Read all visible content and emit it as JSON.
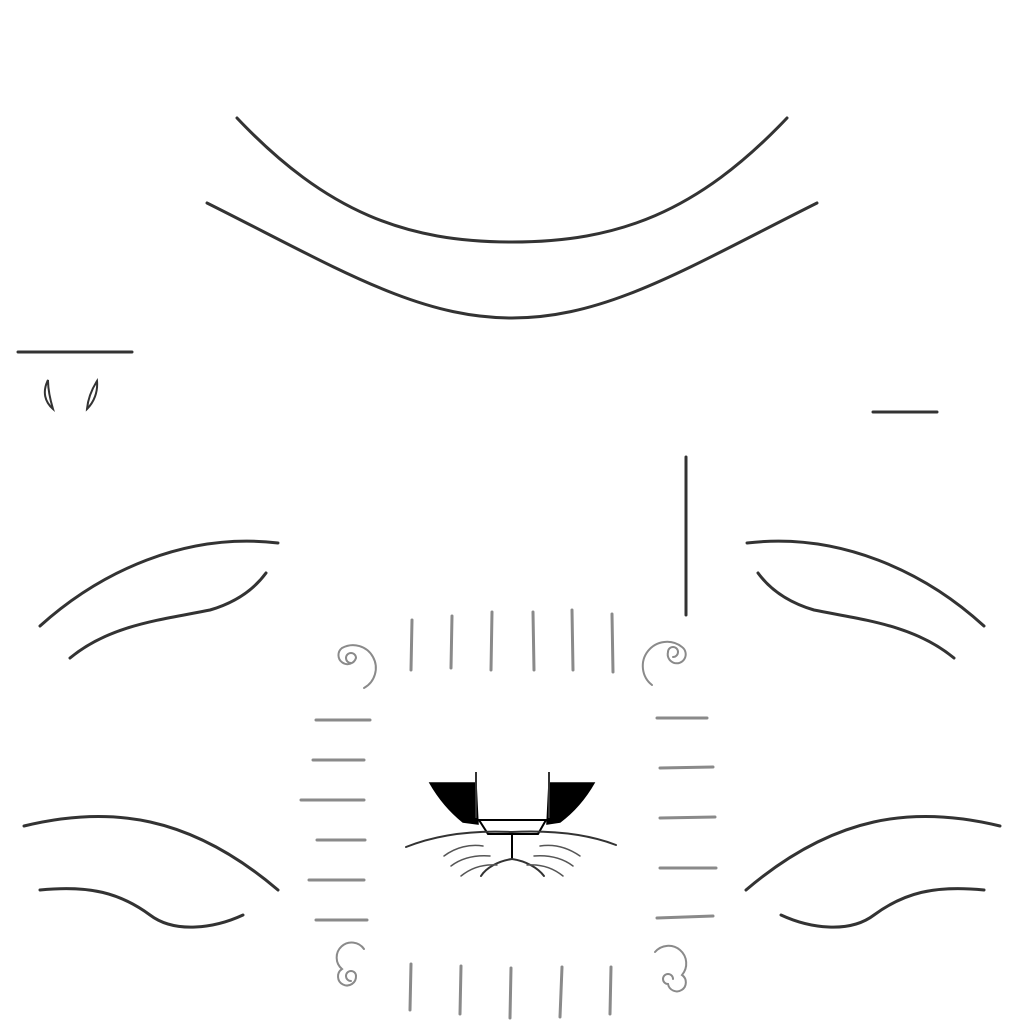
{
  "canvas": {
    "background": "#ffffff"
  },
  "colors": {
    "primary_stroke": "#333333",
    "secondary_stroke": "#8a8a8a",
    "fill_dark": "#000000"
  },
  "regions": {
    "top": "top-arc-group",
    "left": "left-eye-group",
    "right": "right-eye-group",
    "center": "center-face-group",
    "bottom": "bottom-accent-group"
  }
}
